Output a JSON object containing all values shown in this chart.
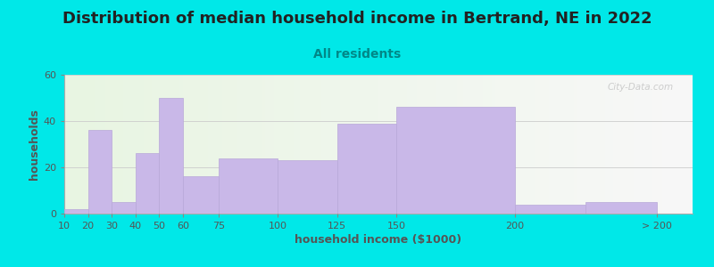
{
  "title": "Distribution of median household income in Bertrand, NE in 2022",
  "subtitle": "All residents",
  "xlabel": "household income ($1000)",
  "ylabel": "households",
  "bar_color": "#c9b8e8",
  "bar_edgecolor": "#b8a8d8",
  "bin_edges": [
    10,
    20,
    30,
    40,
    50,
    60,
    75,
    100,
    125,
    150,
    200,
    230,
    260
  ],
  "values": [
    2,
    36,
    5,
    26,
    50,
    16,
    24,
    23,
    39,
    46,
    4,
    5
  ],
  "xtick_positions": [
    10,
    20,
    30,
    40,
    50,
    60,
    75,
    100,
    125,
    150,
    200,
    260
  ],
  "xtick_labels": [
    "10",
    "20",
    "30",
    "40",
    "50",
    "60",
    "75",
    "100",
    "125",
    "150",
    "200",
    "> 200"
  ],
  "ylim": [
    0,
    60
  ],
  "xlim": [
    10,
    275
  ],
  "yticks": [
    0,
    20,
    40,
    60
  ],
  "background_color": "#00e8e8",
  "title_fontsize": 13,
  "subtitle_fontsize": 10,
  "axis_label_fontsize": 9,
  "tick_fontsize": 8,
  "title_color": "#222222",
  "subtitle_color": "#008888",
  "axis_label_color": "#555555",
  "watermark": "City-Data.com"
}
